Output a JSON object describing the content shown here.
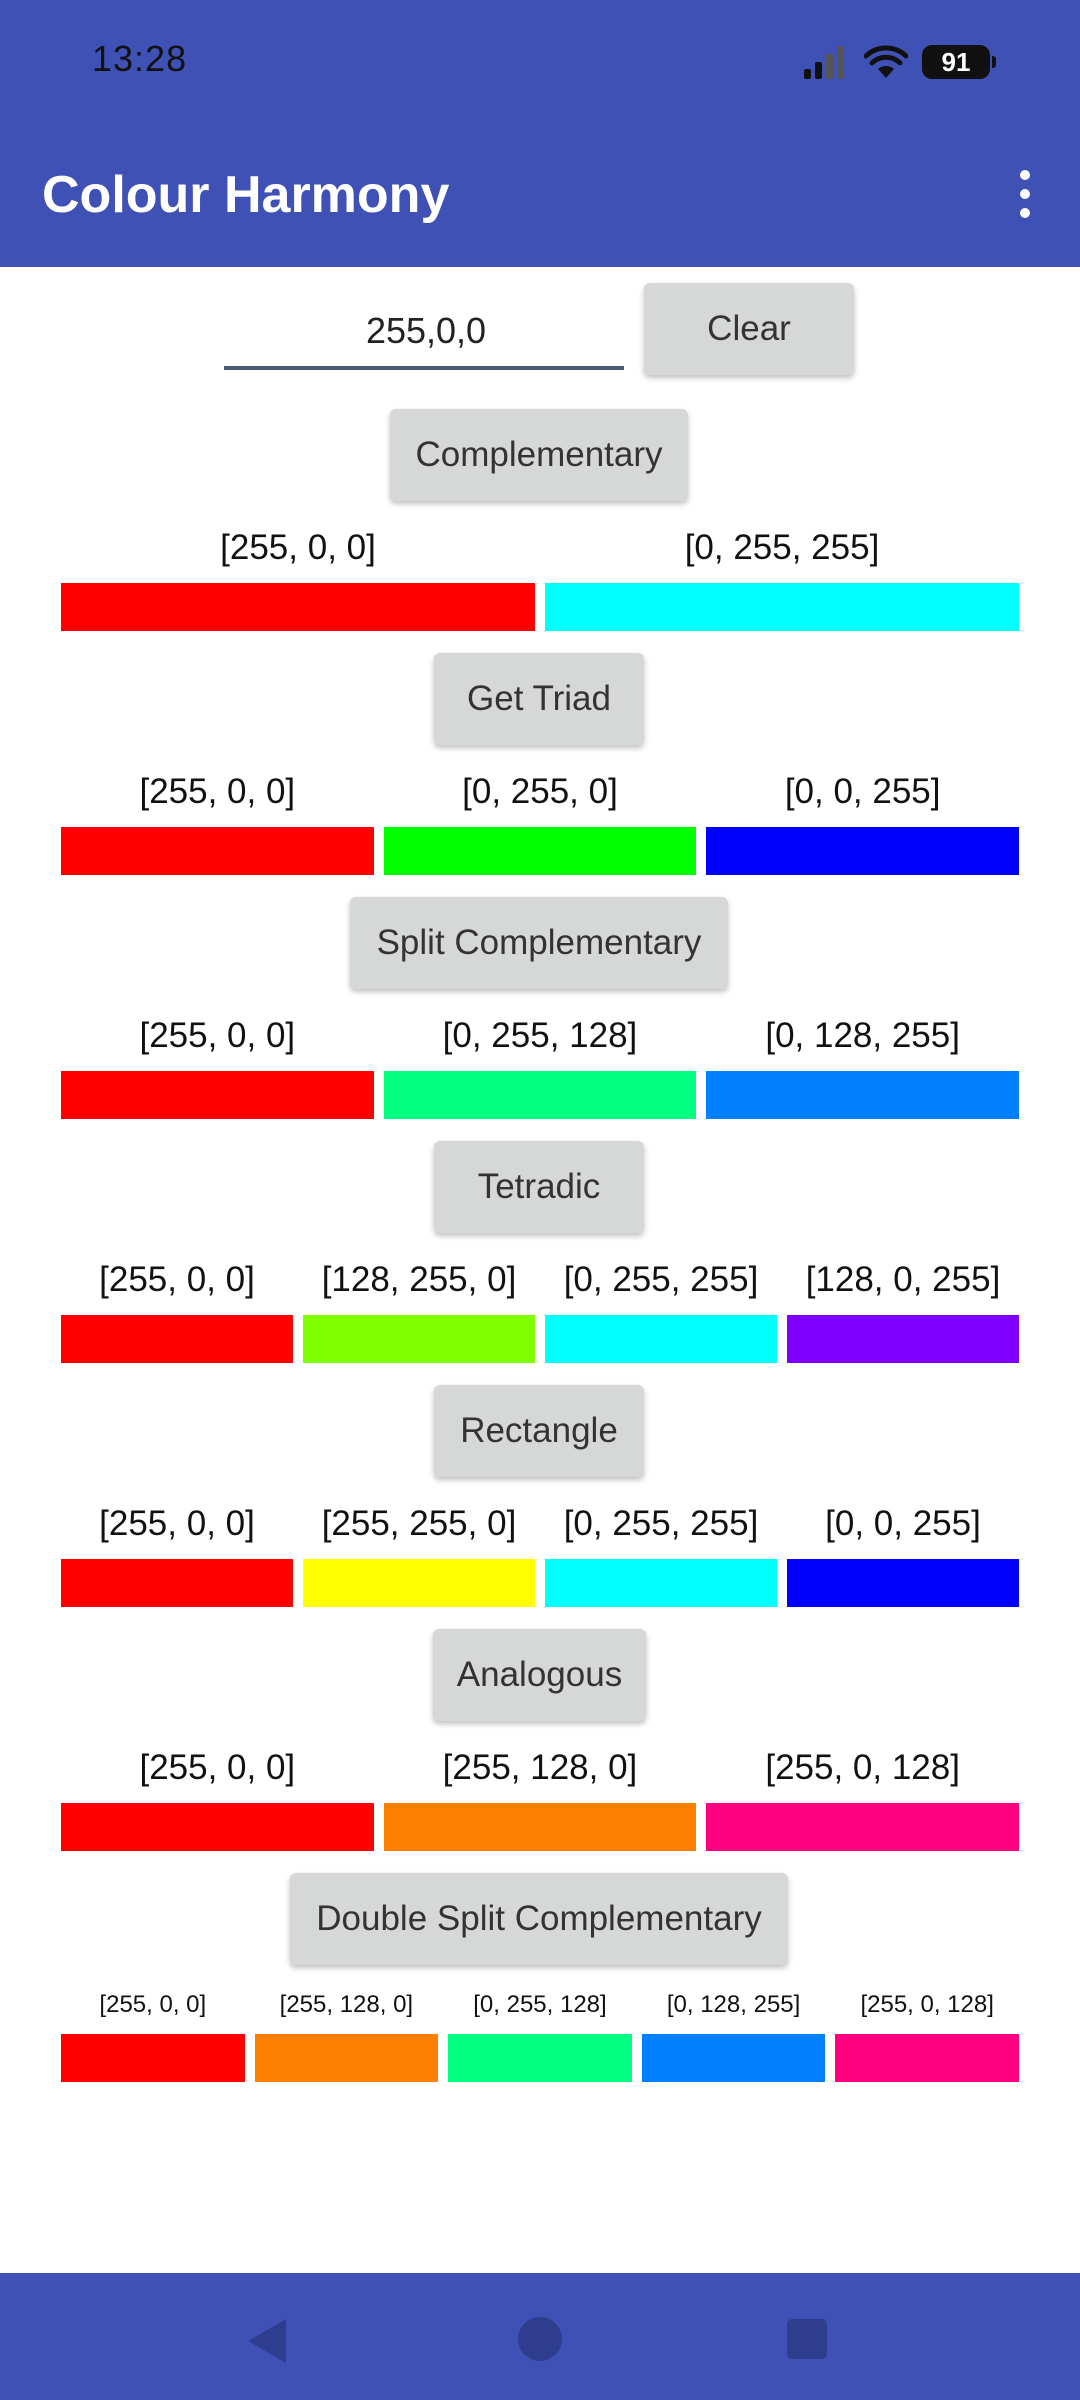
{
  "status": {
    "time": "13:28",
    "battery": "91"
  },
  "app": {
    "title": "Colour Harmony"
  },
  "input": {
    "value": "255,0,0"
  },
  "buttons": {
    "clear": "Clear",
    "complementary": "Complementary",
    "triad": "Get Triad",
    "split": "Split Complementary",
    "tetradic": "Tetradic",
    "rectangle": "Rectangle",
    "analogous": "Analogous",
    "double_split": "Double Split Complementary"
  },
  "harmonies": {
    "complementary": [
      {
        "label": "[255, 0, 0]",
        "color": "#FF0000"
      },
      {
        "label": "[0, 255, 255]",
        "color": "#00FFFF"
      }
    ],
    "triad": [
      {
        "label": "[255, 0, 0]",
        "color": "#FF0000"
      },
      {
        "label": "[0, 255, 0]",
        "color": "#00FF00"
      },
      {
        "label": "[0, 0, 255]",
        "color": "#0000FF"
      }
    ],
    "split": [
      {
        "label": "[255, 0, 0]",
        "color": "#FF0000"
      },
      {
        "label": "[0, 255, 128]",
        "color": "#00FF80"
      },
      {
        "label": "[0, 128, 255]",
        "color": "#0080FF"
      }
    ],
    "tetradic": [
      {
        "label": "[255, 0, 0]",
        "color": "#FF0000"
      },
      {
        "label": "[128, 255, 0]",
        "color": "#80FF00"
      },
      {
        "label": "[0, 255, 255]",
        "color": "#00FFFF"
      },
      {
        "label": "[128, 0, 255]",
        "color": "#8000FF"
      }
    ],
    "rectangle": [
      {
        "label": "[255, 0, 0]",
        "color": "#FF0000"
      },
      {
        "label": "[255, 255, 0]",
        "color": "#FFFF00"
      },
      {
        "label": "[0, 255, 255]",
        "color": "#00FFFF"
      },
      {
        "label": "[0, 0, 255]",
        "color": "#0000FF"
      }
    ],
    "analogous": [
      {
        "label": "[255, 0, 0]",
        "color": "#FF0000"
      },
      {
        "label": "[255, 128, 0]",
        "color": "#FF8000"
      },
      {
        "label": "[255, 0, 128]",
        "color": "#FF0080"
      }
    ],
    "double_split": [
      {
        "label": "[255, 0, 0]",
        "color": "#FF0000"
      },
      {
        "label": "[255, 128, 0]",
        "color": "#FF8000"
      },
      {
        "label": "[0, 255, 128]",
        "color": "#00FF80"
      },
      {
        "label": "[0, 128, 255]",
        "color": "#0080FF"
      },
      {
        "label": "[255, 0, 128]",
        "color": "#FF0080"
      }
    ]
  },
  "colors": {
    "appbar": "#3F51B5",
    "button": "#D6D7D7"
  }
}
